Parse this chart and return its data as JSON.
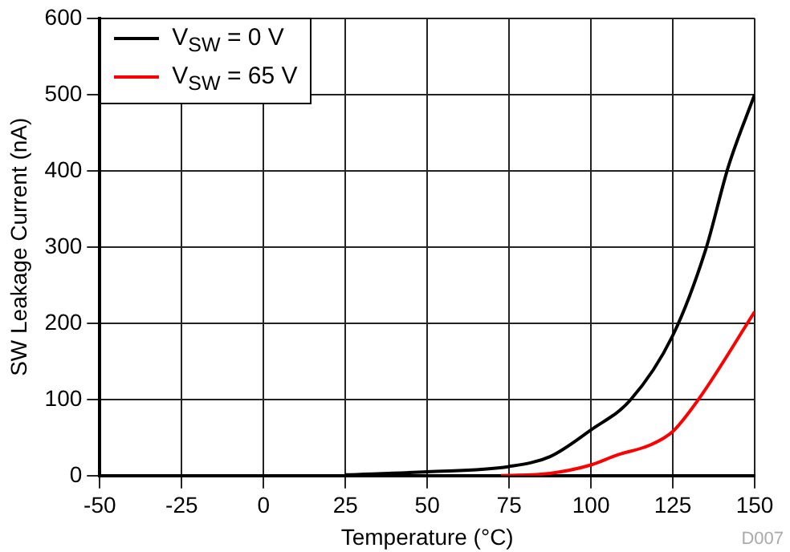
{
  "chart_data": {
    "type": "line",
    "xlabel": "Temperature (°C)",
    "ylabel": "SW Leakage Current (nA)",
    "xlim": [
      -50,
      150
    ],
    "xticks": [
      -50,
      -25,
      0,
      25,
      50,
      75,
      100,
      125,
      150
    ],
    "ylim": [
      0,
      600
    ],
    "yticks": [
      0,
      100,
      200,
      300,
      400,
      500,
      600
    ],
    "grid": true,
    "legend": "top left",
    "marker": "none",
    "line_style": "solid",
    "annotations": [
      "D007"
    ],
    "series": [
      {
        "name": "V$_{SW}$ = 0 V",
        "color": "#000000",
        "x": [
          25,
          50,
          75,
          87.5,
          100,
          112,
          125,
          135,
          142,
          150
        ],
        "values": [
          1,
          5,
          12,
          25,
          60,
          99,
          184,
          296,
          406,
          500
        ]
      },
      {
        "name": "V$_{SW}$ = 65 V",
        "color": "#ff0000",
        "x": [
          72.5,
          87.5,
          100,
          108,
          118,
          125,
          133,
          150
        ],
        "values": [
          0,
          3,
          14,
          27,
          40,
          58,
          101,
          215
        ]
      }
    ]
  }
}
